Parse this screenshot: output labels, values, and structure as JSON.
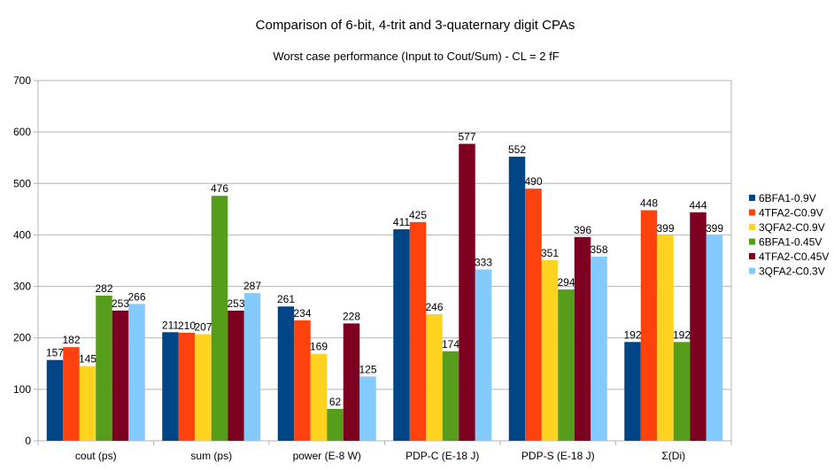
{
  "chart_data": {
    "type": "bar",
    "title": "Comparison of 6-bit, 4-trit and 3-quaternary digit CPAs",
    "subtitle": "Worst case performance (Input to Cout/Sum)  - CL = 2 fF",
    "categories": [
      "cout (ps)",
      "sum (ps)",
      "power (E-8 W)",
      "PDP-C (E-18 J)",
      "PDP-S (E-18 J)",
      "Σ(Di)"
    ],
    "series": [
      {
        "name": "6BFA1-0.9V",
        "color": "#004586",
        "values": [
          157,
          211,
          261,
          411,
          552,
          192
        ]
      },
      {
        "name": "4TFA2-C0.9V",
        "color": "#ff420e",
        "values": [
          182,
          210,
          234,
          425,
          490,
          448
        ]
      },
      {
        "name": "3QFA2-C0.9V",
        "color": "#ffd320",
        "values": [
          145,
          207,
          169,
          246,
          351,
          399
        ]
      },
      {
        "name": "6BFA1-0.45V",
        "color": "#579d1c",
        "values": [
          282,
          476,
          62,
          174,
          294,
          192
        ]
      },
      {
        "name": "4TFA2-C0.45V",
        "color": "#7e0021",
        "values": [
          253,
          253,
          228,
          577,
          396,
          444
        ]
      },
      {
        "name": "3QFA2-C0.3V",
        "color": "#83caff",
        "values": [
          266,
          287,
          125,
          333,
          358,
          399
        ]
      }
    ],
    "ylim": [
      0,
      700
    ],
    "yticks": [
      "0",
      "100",
      "200",
      "300",
      "400",
      "500",
      "600",
      "700"
    ],
    "grid": true,
    "legend_position": "right"
  }
}
